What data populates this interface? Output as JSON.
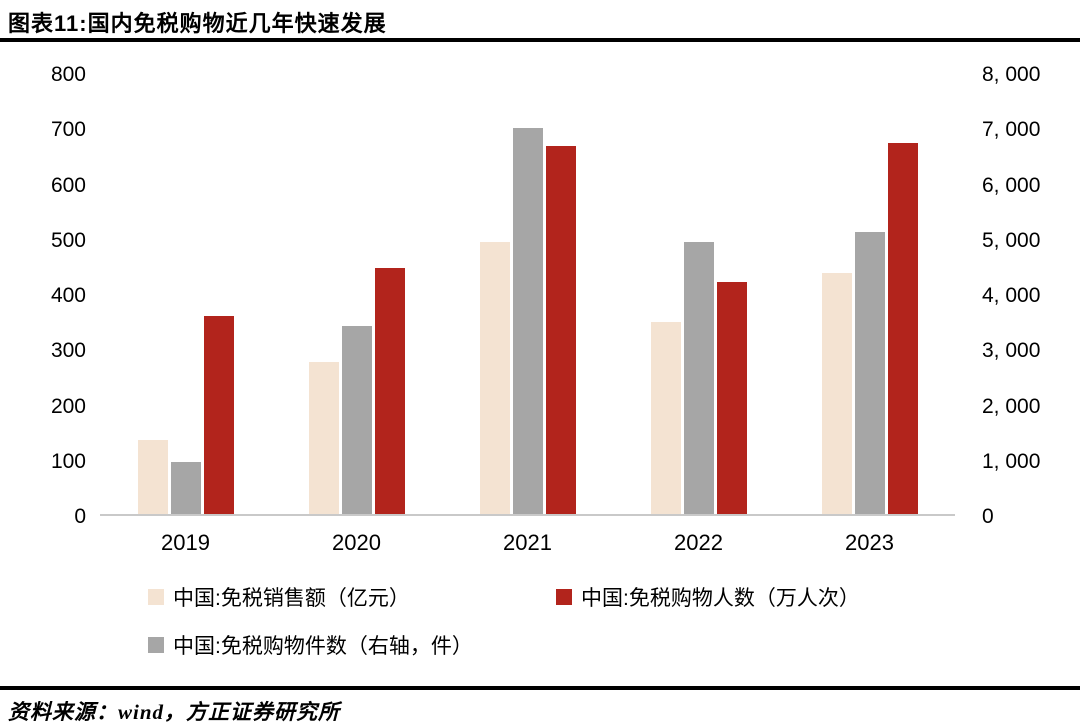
{
  "header": {
    "title": "图表11:国内免税购物近几年快速发展"
  },
  "footer": {
    "source": "资料来源：wind，方正证券研究所"
  },
  "chart_data": {
    "type": "bar",
    "title": "国内免税购物近几年快速发展",
    "categories": [
      "2019",
      "2020",
      "2021",
      "2022",
      "2023"
    ],
    "series": [
      {
        "name": "中国:免税销售额（亿元）",
        "axis": "left",
        "color": "#F4E3D2",
        "values": [
          136,
          278,
          497,
          350,
          440
        ]
      },
      {
        "name": "中国:免税购物件数（右轴，件）",
        "axis": "right",
        "color": "#A6A6A6",
        "values": [
          950,
          3430,
          7060,
          4960,
          5150
        ]
      },
      {
        "name": "中国:免税购物人数（万人次）",
        "axis": "left",
        "color": "#B2241C",
        "values": [
          361,
          450,
          672,
          423,
          678
        ]
      }
    ],
    "left_axis": {
      "min": 0,
      "max": 800,
      "ticks": [
        "800",
        "700",
        "600",
        "500",
        "400",
        "300",
        "200",
        "100",
        "0"
      ]
    },
    "right_axis": {
      "min": 0,
      "max": 8000,
      "ticks": [
        "8, 000",
        "7, 000",
        "6, 000",
        "5, 000",
        "4, 000",
        "3, 000",
        "2, 000",
        "1, 000",
        "0"
      ]
    },
    "legend": [
      {
        "label": "中国:免税销售额（亿元）",
        "color": "#F4E3D2"
      },
      {
        "label": "中国:免税购物人数（万人次）",
        "color": "#B2241C"
      },
      {
        "label": "中国:免税购物件数（右轴，件）",
        "color": "#A6A6A6"
      }
    ],
    "grid": false,
    "legend_position": "bottom",
    "xlabel": "",
    "ylabel": ""
  }
}
